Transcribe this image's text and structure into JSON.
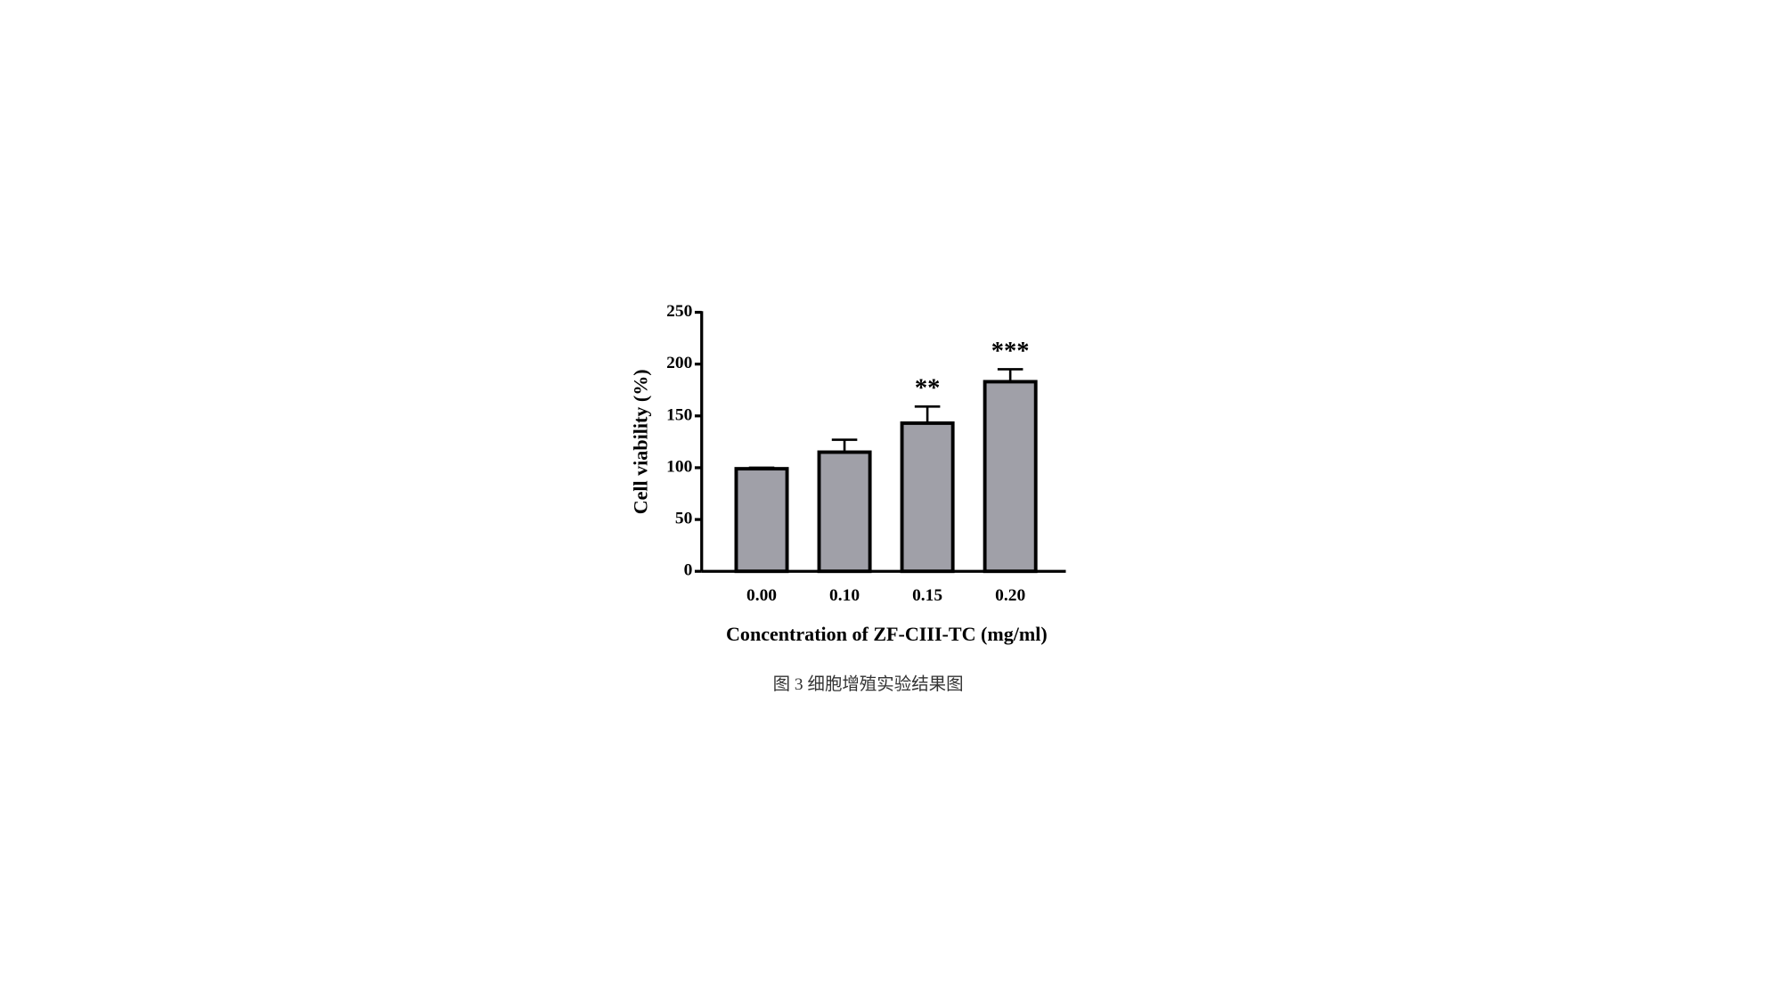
{
  "chart_data": {
    "type": "bar",
    "xlabel": "Concentration of ZF-CIII-TC (mg/ml)",
    "ylabel": "Cell viability (%)",
    "categories": [
      "0.00",
      "0.10",
      "0.15",
      "0.20"
    ],
    "values": [
      99,
      115,
      143,
      183
    ],
    "errors": [
      1,
      12,
      16,
      12
    ],
    "significance": [
      null,
      null,
      "**",
      "***"
    ],
    "color": "#a0a0a8",
    "ylim": [
      0,
      250
    ],
    "yticks": [
      0,
      50,
      100,
      150,
      200,
      250
    ],
    "grid": false
  },
  "caption": "图 3 细胞增殖实验结果图"
}
